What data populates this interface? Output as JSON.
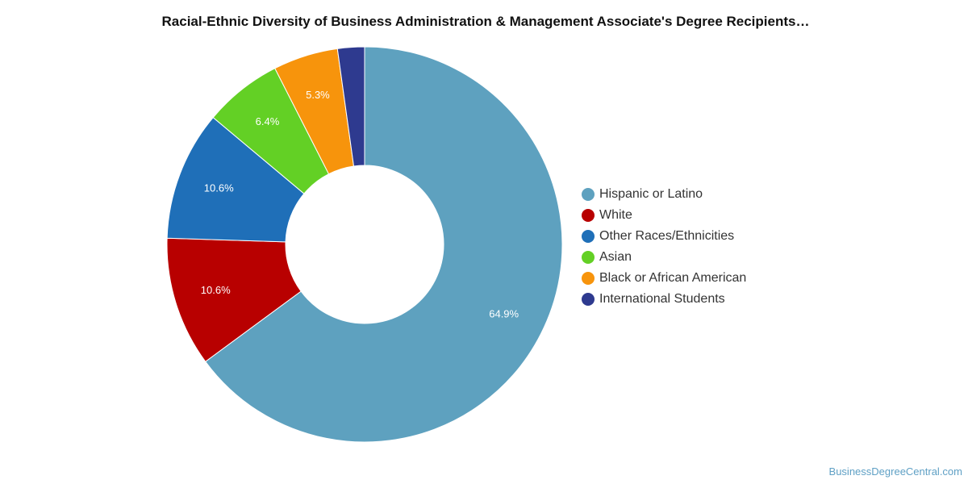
{
  "chart_data": {
    "type": "pie",
    "title": "Racial-Ethnic Diversity of Business Administration & Management Associate's Degree Recipients…",
    "donut": true,
    "slices": [
      {
        "label": "Hispanic or Latino",
        "value": 64.9,
        "value_label": "64.9%",
        "color": "#5ea1bf"
      },
      {
        "label": "White",
        "value": 10.6,
        "value_label": "10.6%",
        "color": "#b80000"
      },
      {
        "label": "Other Races/Ethnicities",
        "value": 10.6,
        "value_label": "10.6%",
        "color": "#1f6fb8"
      },
      {
        "label": "Asian",
        "value": 6.4,
        "value_label": "6.4%",
        "color": "#63d025"
      },
      {
        "label": "Black or African American",
        "value": 5.3,
        "value_label": "5.3%",
        "color": "#f7940c"
      },
      {
        "label": "International Students",
        "value": 2.2,
        "value_label": "",
        "color": "#2e3a8f"
      }
    ],
    "legend_position": "right"
  },
  "source_label": "BusinessDegreeCentral.com"
}
